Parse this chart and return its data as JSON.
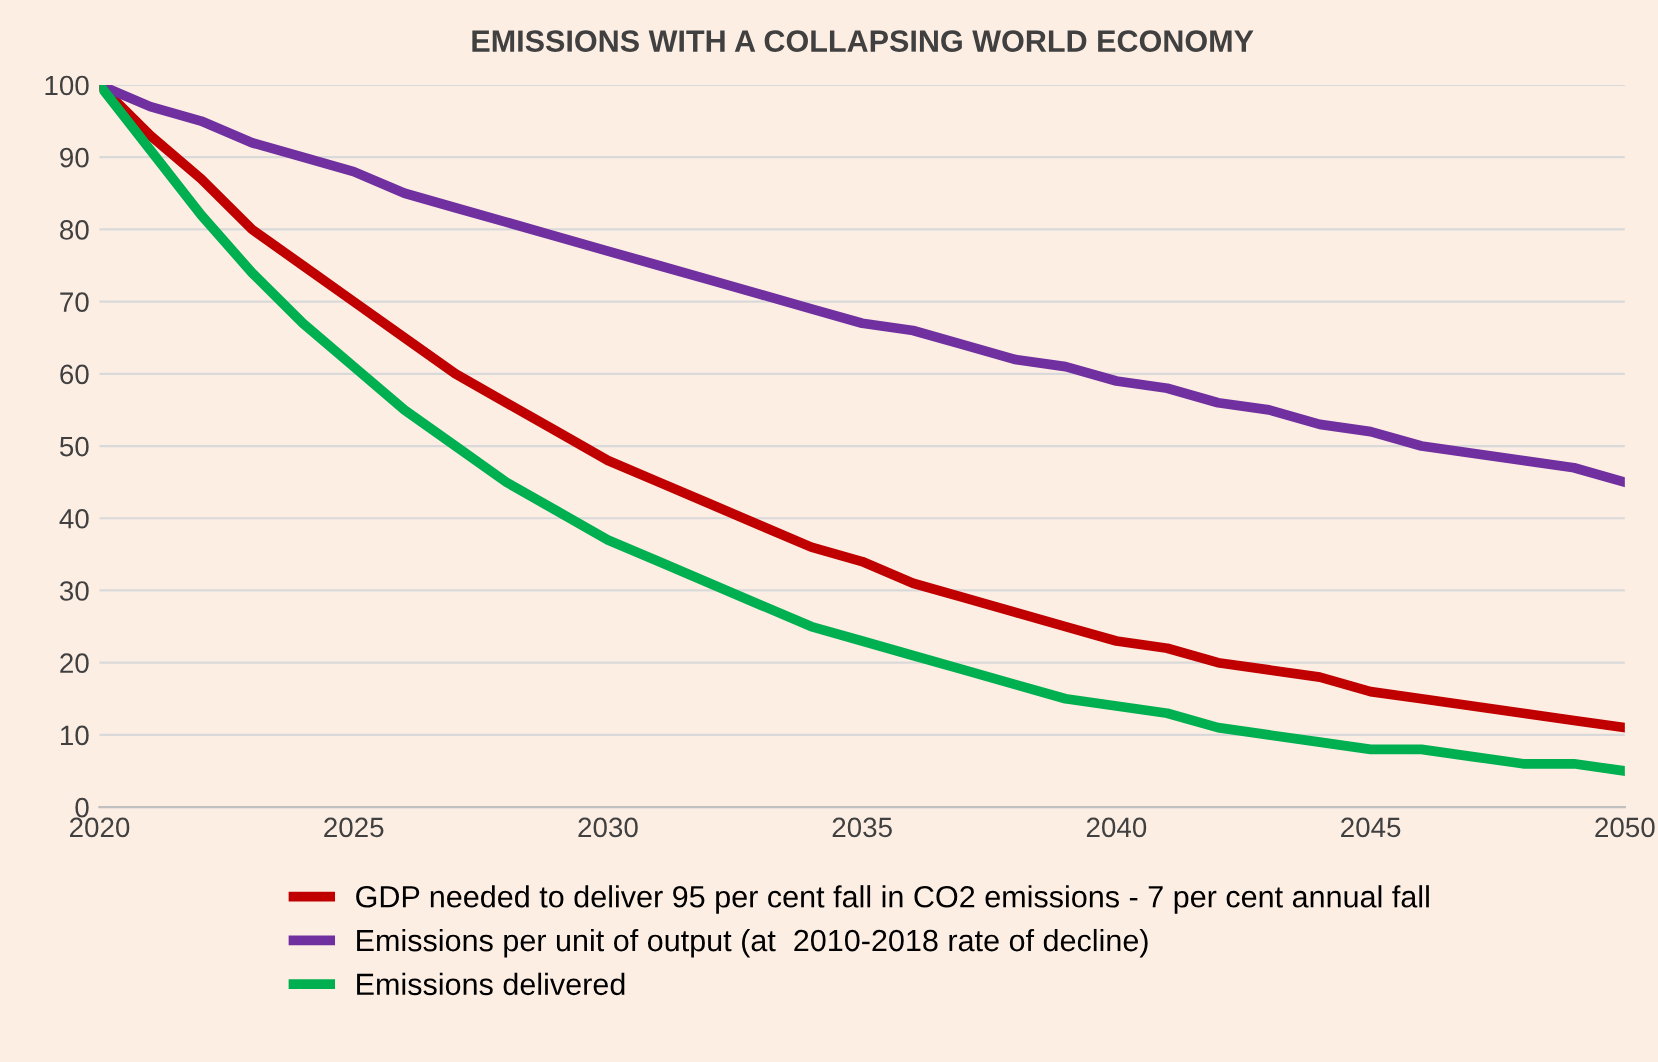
{
  "chart_data": {
    "type": "line",
    "title": "EMISSIONS WITH A COLLAPSING WORLD ECONOMY",
    "x": [
      2020,
      2021,
      2022,
      2023,
      2024,
      2025,
      2026,
      2027,
      2028,
      2029,
      2030,
      2031,
      2032,
      2033,
      2034,
      2035,
      2036,
      2037,
      2038,
      2039,
      2040,
      2041,
      2042,
      2043,
      2044,
      2045,
      2046,
      2047,
      2048,
      2049,
      2050
    ],
    "series": [
      {
        "name": "GDP needed to deliver 95 per cent fall in CO2 emissions - 7 per cent annual fall",
        "color": "#c00000",
        "values": [
          100,
          93,
          87,
          80,
          75,
          70,
          65,
          60,
          56,
          52,
          48,
          45,
          42,
          39,
          36,
          34,
          31,
          29,
          27,
          25,
          23,
          22,
          20,
          19,
          18,
          16,
          15,
          14,
          13,
          12,
          11
        ]
      },
      {
        "name": "Emissions per unit of output (at  2010-2018 rate of decline)",
        "color": "#7030a0",
        "values": [
          100,
          97,
          95,
          92,
          90,
          88,
          85,
          83,
          81,
          79,
          77,
          75,
          73,
          71,
          69,
          67,
          66,
          64,
          62,
          61,
          59,
          58,
          56,
          55,
          53,
          52,
          50,
          49,
          48,
          47,
          45
        ]
      },
      {
        "name": "Emissions delivered",
        "color": "#00b050",
        "values": [
          100,
          91,
          82,
          74,
          67,
          61,
          55,
          50,
          45,
          41,
          37,
          34,
          31,
          28,
          25,
          23,
          21,
          19,
          17,
          15,
          14,
          13,
          11,
          10,
          9,
          8,
          8,
          7,
          6,
          6,
          5
        ]
      }
    ],
    "xlim": [
      2020,
      2050
    ],
    "xticks": [
      2020,
      2025,
      2030,
      2035,
      2040,
      2045,
      2050
    ],
    "ylim": [
      0,
      100
    ],
    "yticks": [
      0,
      10,
      20,
      30,
      40,
      50,
      60,
      70,
      80,
      90,
      100
    ],
    "grid": "y",
    "legend": "bottom",
    "marker": "none",
    "line_style": "solid"
  }
}
